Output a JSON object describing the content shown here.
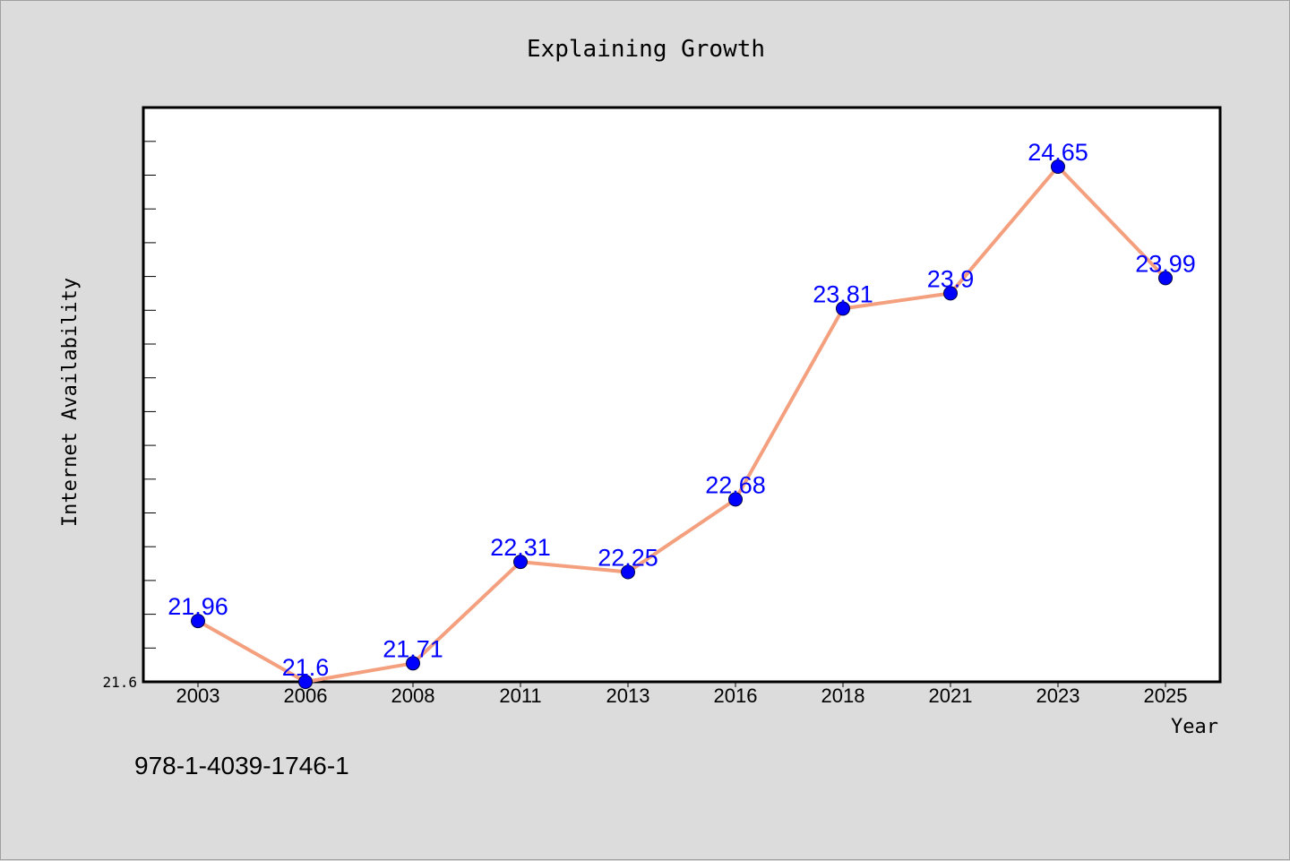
{
  "chart_data": {
    "type": "line",
    "title": "Explaining Growth",
    "xlabel": "Year",
    "ylabel": "Internet Availability",
    "categories": [
      "2003",
      "2006",
      "2008",
      "2011",
      "2013",
      "2016",
      "2018",
      "2021",
      "2023",
      "2025"
    ],
    "series": [
      {
        "values": [
          21.96,
          21.6,
          21.71,
          22.31,
          22.25,
          22.68,
          23.81,
          23.9,
          24.65,
          23.99
        ],
        "labels": [
          "21.96",
          "21.6",
          "21.71",
          "22.31",
          "22.25",
          "22.68",
          "23.81",
          "23.9",
          "24.65",
          "23.99"
        ]
      }
    ],
    "ylim": [
      21.6,
      25.0
    ],
    "y_tick_labels": [
      "21.6"
    ],
    "grid": false,
    "legend": "none",
    "line_color": "#f4a07f",
    "marker_color": "#0000ff",
    "label_color": "#0000ff"
  },
  "footnote": "978-1-4039-1746-1"
}
